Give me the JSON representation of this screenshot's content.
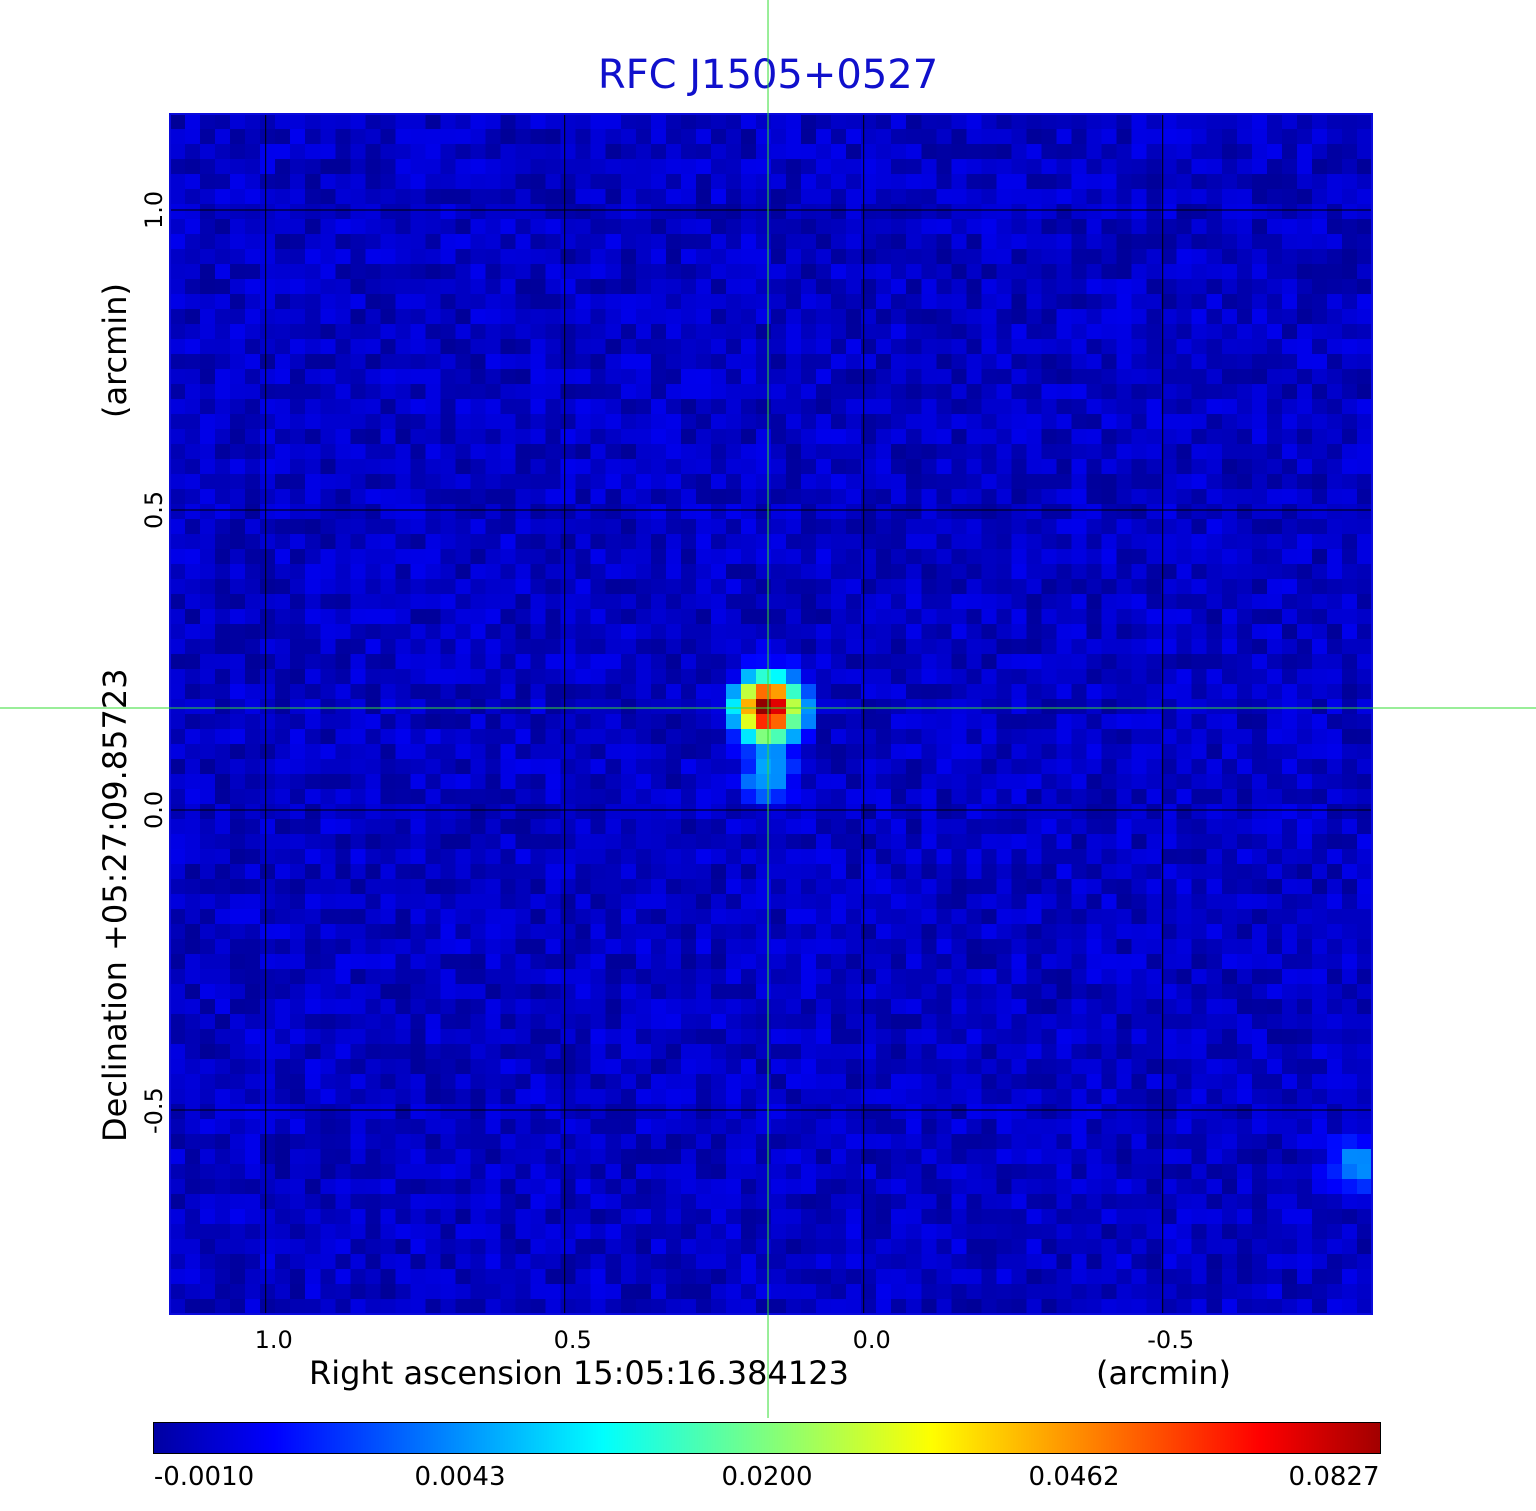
{
  "chart_data": {
    "type": "heatmap",
    "title": "RFC J1505+0527",
    "xlabel": "Right ascension  15:05:16.384123",
    "xunit": "(arcmin)",
    "ylabel": "Declination  +05:27:09.85723",
    "yunit": "(arcmin)",
    "xlim": [
      1.16,
      -0.85
    ],
    "ylim": [
      -0.84,
      1.16
    ],
    "xticks": [
      1.0,
      0.5,
      0.0,
      -0.5
    ],
    "xtick_labels": [
      "1.0",
      "0.5",
      "0.0",
      "-0.5"
    ],
    "yticks": [
      1.0,
      0.5,
      0.0,
      -0.5
    ],
    "ytick_labels": [
      "1.0",
      "0.5",
      "0.0",
      "-0.5"
    ],
    "grid": true,
    "crosshair": {
      "x": 0.16,
      "y": 0.17,
      "color": "#33dd33"
    },
    "sources": [
      {
        "x": 0.16,
        "y": 0.17,
        "peak": 0.0827
      },
      {
        "x": 0.16,
        "y": 0.06,
        "peak": 0.006
      },
      {
        "x": -0.82,
        "y": -0.59,
        "peak": 0.005
      }
    ],
    "colorbar": {
      "colormap": "jet",
      "tick_values": [
        -0.001,
        0.0043,
        0.02,
        0.0462,
        0.0827
      ],
      "tick_labels": [
        "-0.0010",
        "0.0043",
        "0.0200",
        "0.0462",
        "0.0827"
      ]
    }
  }
}
